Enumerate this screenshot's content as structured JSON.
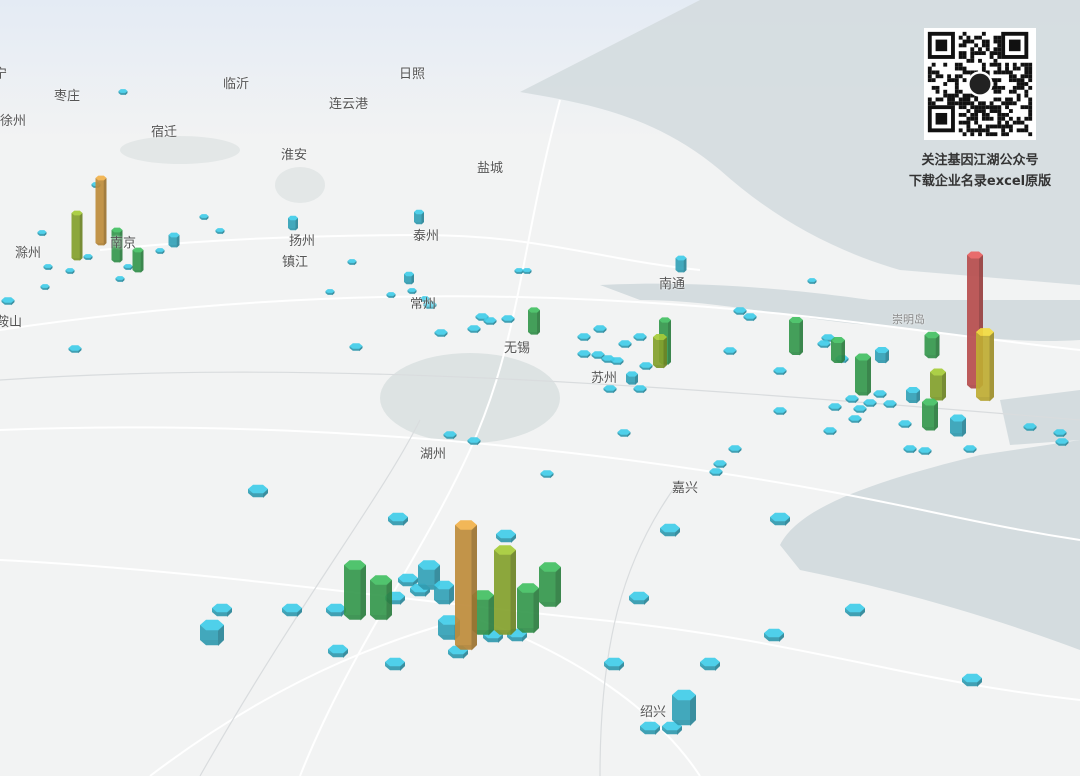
{
  "cities": [
    "宁",
    "枣庄",
    "徐州",
    "临沂",
    "日照",
    "连云港",
    "宿迁",
    "淮安",
    "盐城",
    "滁州",
    "南京",
    "扬州",
    "镇江",
    "泰州",
    "常州",
    "鞍山",
    "南通",
    "崇明岛",
    "无锡",
    "苏州",
    "湖州",
    "嘉兴",
    "绍兴"
  ],
  "qr_caption": {
    "line1": "关注基因江湖公众号",
    "line2": "下载企业名录excel原版"
  },
  "colors": {
    "low": "#3dbfd9",
    "mid": "#3fb35c",
    "mid_high": "#9bbd35",
    "high": "#e0a545",
    "higher": "#e2cc3c",
    "max": "#d95c5c",
    "sea": "#d4dcdf",
    "land": "#f2f3f3",
    "lake": "#dde3e3"
  },
  "columns": [
    45,
    65,
    30,
    20,
    10,
    10,
    10,
    12,
    8,
    22,
    42,
    28,
    8,
    32,
    20,
    35,
    20,
    130,
    65,
    25,
    25,
    15,
    10,
    10,
    120,
    80,
    50,
    35,
    40,
    35,
    35,
    20,
    15,
    15,
    25,
    15
  ]
}
